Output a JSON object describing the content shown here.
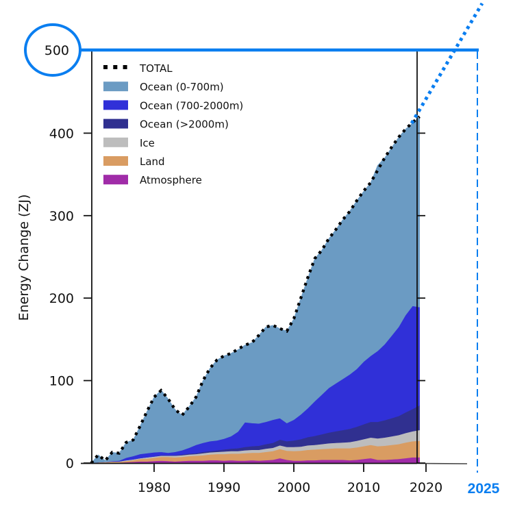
{
  "chart_data": {
    "type": "area",
    "stacked": true,
    "title": "",
    "xlabel": "",
    "ylabel": "Energy Change (ZJ)",
    "xlim": [
      1970.9,
      2020
    ],
    "ylim": [
      0,
      500
    ],
    "grid": false,
    "legend_position": "top-left",
    "x_ticks": [
      1980,
      1990,
      2000,
      2010,
      2020
    ],
    "y_ticks": [
      0,
      100,
      200,
      300,
      400,
      500
    ],
    "x": [
      1971,
      1972,
      1973,
      1974,
      1975,
      1976,
      1977,
      1978,
      1979,
      1980,
      1981,
      1982,
      1983,
      1984,
      1985,
      1986,
      1987,
      1988,
      1989,
      1990,
      1991,
      1992,
      1993,
      1994,
      1995,
      1996,
      1997,
      1998,
      1999,
      2000,
      2001,
      2002,
      2003,
      2004,
      2005,
      2006,
      2007,
      2008,
      2009,
      2010,
      2011,
      2012,
      2013,
      2014,
      2015,
      2016,
      2017,
      2018
    ],
    "series": [
      {
        "name": "Atmosphere",
        "color": "#a02ca8",
        "values": [
          0,
          0.5,
          0.5,
          0.5,
          0.5,
          1,
          1.5,
          2,
          2,
          2.5,
          3,
          2.5,
          2,
          2.5,
          3,
          3,
          3,
          3.5,
          3.5,
          3,
          3.5,
          3,
          3,
          3.5,
          3,
          3.5,
          4,
          6,
          4,
          3,
          3,
          3.5,
          3.5,
          4,
          4,
          4,
          4,
          3.5,
          4,
          5,
          6,
          4,
          4,
          4.5,
          5,
          6,
          7,
          7
        ]
      },
      {
        "name": "Land",
        "color": "#d99c62",
        "values": [
          0,
          0.5,
          0.5,
          1,
          1,
          1.5,
          2,
          3,
          3.5,
          4,
          4.5,
          5,
          5,
          5,
          5.5,
          6,
          6.5,
          7,
          7.5,
          8,
          8,
          8.5,
          9,
          9,
          9.5,
          10,
          10.5,
          11,
          11,
          11.5,
          12,
          12.5,
          13,
          13,
          13.5,
          14,
          14,
          14.5,
          15,
          15.5,
          16,
          16.5,
          17,
          17.5,
          18,
          19,
          19.5,
          20
        ]
      },
      {
        "name": "Ice",
        "color": "#bdbdbd",
        "values": [
          0,
          0,
          0.5,
          0.5,
          0.5,
          1,
          1,
          1,
          1.5,
          1.5,
          1.5,
          1.5,
          2,
          2,
          2,
          2,
          2.5,
          2.5,
          2.5,
          3,
          3,
          3,
          3.5,
          3.5,
          3.5,
          4,
          4,
          4.5,
          4.5,
          5,
          5,
          5.5,
          5.5,
          6,
          6.5,
          6.5,
          7,
          7.5,
          8,
          8.5,
          9,
          9.5,
          10,
          10.5,
          11,
          11.5,
          12,
          13
        ]
      },
      {
        "name": "Ocean (>2000m)",
        "color": "#303090",
        "values": [
          0,
          0,
          0,
          0,
          0,
          0,
          0,
          0,
          0,
          0,
          0.5,
          0.5,
          0.5,
          1,
          1,
          1,
          1.5,
          1.5,
          2,
          2.5,
          3,
          3.5,
          4,
          4.5,
          5,
          5.5,
          6,
          7,
          7,
          8,
          9,
          10,
          11,
          12,
          13,
          14,
          15,
          16,
          17,
          18,
          19,
          20,
          21,
          22,
          23,
          25,
          27,
          30
        ]
      },
      {
        "name": "Ocean (700-2000m)",
        "color": "#3030d8",
        "values": [
          0,
          0,
          0,
          0.5,
          1,
          3,
          4,
          5,
          5,
          5,
          4,
          3,
          4,
          5,
          7,
          10,
          11,
          12,
          12,
          13,
          15,
          20,
          30,
          28,
          27,
          27,
          28,
          26,
          22,
          25,
          30,
          35,
          42,
          48,
          54,
          58,
          62,
          66,
          70,
          76,
          80,
          86,
          92,
          100,
          108,
          118,
          125,
          119
        ]
      },
      {
        "name": "Ocean (0-700m)",
        "color": "#6b9bc3",
        "values": [
          0,
          9,
          1.5,
          10.5,
          9,
          18.5,
          19.5,
          34,
          51,
          67,
          75,
          65.5,
          51.5,
          42.5,
          50,
          58,
          75.5,
          88.5,
          97.5,
          100.5,
          100.5,
          99.5,
          93.5,
          97.5,
          107,
          115,
          114.5,
          108.5,
          111.5,
          122.5,
          141,
          158,
          173,
          175,
          181,
          186.5,
          193,
          198,
          204,
          206.5,
          210,
          225,
          226,
          228,
          230,
          225.5,
          222,
          231
        ]
      },
      {
        "name": "TOTAL",
        "color": "#000000",
        "style": "dotted",
        "legend_swatch": "dots",
        "values": [
          0,
          10,
          3,
          13,
          12,
          25,
          28,
          45,
          63,
          80,
          88,
          78,
          65,
          58,
          68,
          80,
          100,
          115,
          125,
          130,
          133,
          138,
          143,
          146,
          155,
          165,
          167,
          163,
          160,
          175,
          200,
          225,
          248,
          258,
          272,
          283,
          295,
          305,
          318,
          330,
          340,
          355,
          370,
          383,
          395,
          405,
          413,
          420
        ]
      }
    ],
    "legend": [
      "TOTAL",
      "Ocean (0-700m)",
      "Ocean (700-2000m)",
      "Ocean (>2000m)",
      "Ice",
      "Land",
      "Atmosphere"
    ],
    "annotations": {
      "color": "#0a7ef0",
      "highlight_value": 500,
      "highlight_label": "500",
      "projection_year_label": "2025",
      "projection_year": 2025,
      "projection_line": {
        "from": [
          2018,
          420
        ],
        "to": [
          2026,
          556
        ],
        "style": "dotted"
      },
      "target_hline": {
        "y": 500,
        "x_to": 2025
      },
      "target_vline": {
        "x": 2025,
        "style": "dashed"
      }
    }
  }
}
